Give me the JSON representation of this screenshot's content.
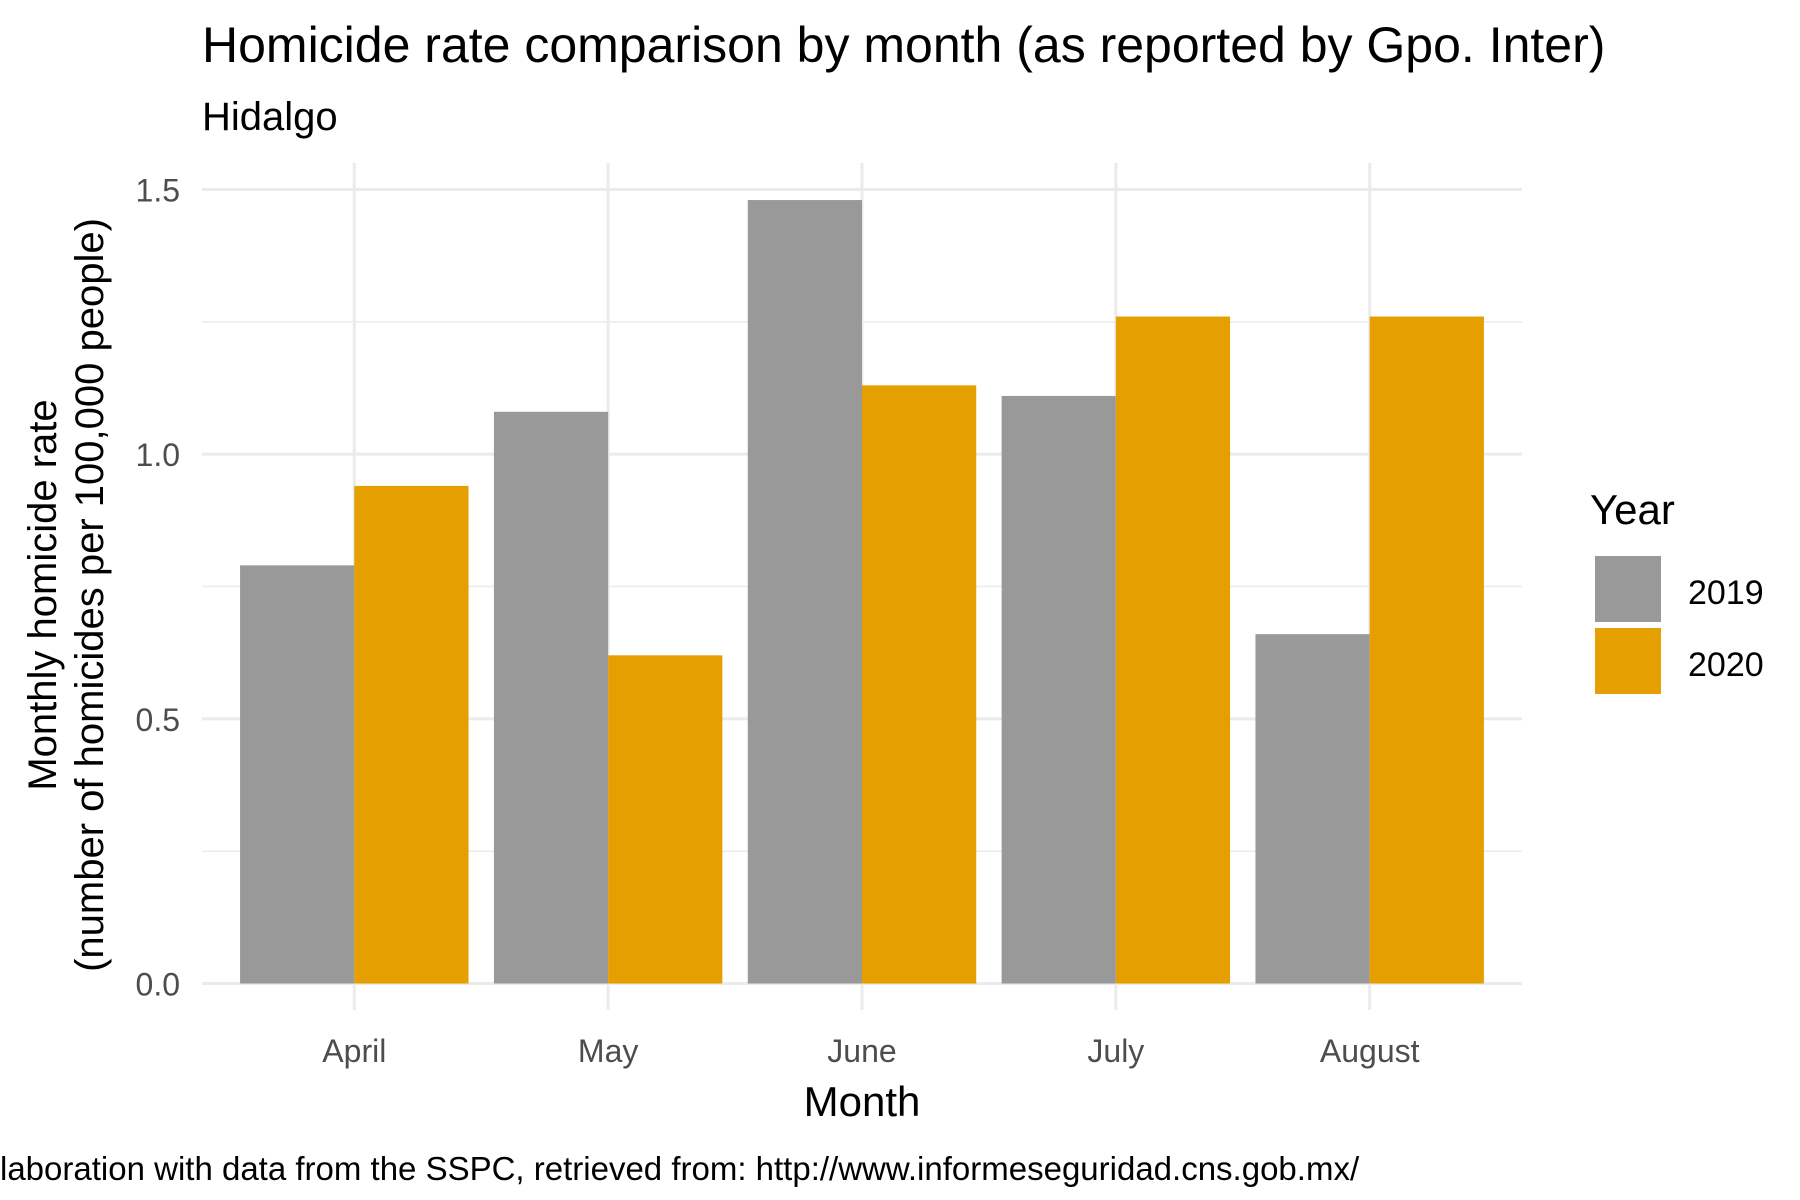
{
  "chart_data": {
    "type": "bar",
    "title": "Homicide rate comparison by month (as reported by Gpo. Inter)",
    "subtitle": "Hidalgo",
    "xlabel": "Month",
    "ylabel_line1": "Monthly homicide rate",
    "ylabel_line2": "(number of homicides per 100,000 people)",
    "caption": "laboration with data from the SSPC, retrieved from: http://www.informeseguridad.cns.gob.mx/",
    "categories": [
      "April",
      "May",
      "June",
      "July",
      "August"
    ],
    "series": [
      {
        "name": "2019",
        "color": "#999999",
        "values": [
          0.79,
          1.08,
          1.48,
          1.11,
          0.66
        ]
      },
      {
        "name": "2020",
        "color": "#E69F00",
        "values": [
          0.94,
          0.62,
          1.13,
          1.26,
          1.26
        ]
      }
    ],
    "yticks": [
      0.0,
      0.5,
      1.0,
      1.5
    ],
    "ytick_labels": [
      "0.0",
      "0.5",
      "1.0",
      "1.5"
    ],
    "ylim": [
      -0.05,
      1.55
    ],
    "grid": true,
    "legend": {
      "title": "Year",
      "position": "right"
    }
  }
}
